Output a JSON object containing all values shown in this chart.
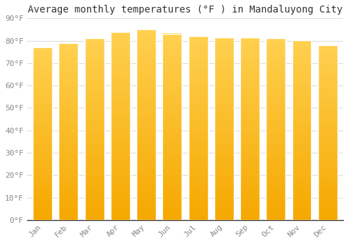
{
  "months": [
    "Jan",
    "Feb",
    "Mar",
    "Apr",
    "May",
    "Jun",
    "Jul",
    "Aug",
    "Sep",
    "Oct",
    "Nov",
    "Dec"
  ],
  "values": [
    77.2,
    78.8,
    81.0,
    83.8,
    85.1,
    83.1,
    81.9,
    81.3,
    81.3,
    81.1,
    80.1,
    78.1
  ],
  "bar_color_bottom": "#F5A800",
  "bar_color_top": "#FFD050",
  "background_color": "#FFFFFF",
  "grid_color": "#DDDDDD",
  "title": "Average monthly temperatures (°F ) in Mandaluyong City",
  "title_fontsize": 10,
  "ylabel_ticks": [
    "0°F",
    "10°F",
    "20°F",
    "30°F",
    "40°F",
    "50°F",
    "60°F",
    "70°F",
    "80°F",
    "90°F"
  ],
  "ytick_values": [
    0,
    10,
    20,
    30,
    40,
    50,
    60,
    70,
    80,
    90
  ],
  "ylim": [
    0,
    90
  ],
  "tick_fontsize": 8,
  "bar_edge_color": "#FFFFFF",
  "bar_width": 0.75
}
